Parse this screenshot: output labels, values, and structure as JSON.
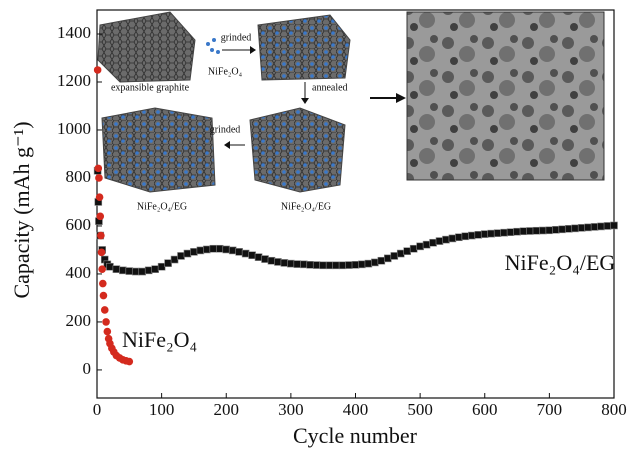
{
  "chart_data": {
    "type": "scatter",
    "x_label": "Cycle number",
    "y_label": "Capacity (mAh g⁻¹)",
    "xlim": [
      0,
      800
    ],
    "xticks": [
      0,
      100,
      200,
      300,
      400,
      500,
      600,
      700,
      800
    ],
    "ylim": [
      -117,
      1500
    ],
    "yticks": [
      0,
      200,
      400,
      600,
      800,
      1000,
      1200,
      1400
    ],
    "annotations": [
      "NiFe₂O₄/EG",
      "NiFe₂O₄"
    ],
    "inset_labels": [
      "expansible graphite",
      "grinded",
      "NiFe₂O₄",
      "annealed",
      "grinded",
      "NiFe₂O₄/EG",
      "NiFe₂O₄/EG"
    ],
    "series": [
      {
        "name": "NiFe₂O₄/EG",
        "color": "#111111",
        "x": [
          1,
          2,
          3,
          5,
          8,
          12,
          16,
          20,
          30,
          40,
          50,
          60,
          70,
          80,
          90,
          100,
          110,
          120,
          130,
          140,
          150,
          160,
          170,
          180,
          190,
          200,
          210,
          220,
          230,
          240,
          250,
          260,
          270,
          280,
          290,
          300,
          310,
          320,
          330,
          340,
          350,
          360,
          370,
          380,
          390,
          400,
          410,
          420,
          430,
          440,
          450,
          460,
          470,
          480,
          490,
          500,
          510,
          520,
          530,
          540,
          550,
          560,
          570,
          580,
          590,
          600,
          610,
          620,
          630,
          640,
          650,
          660,
          670,
          680,
          690,
          700,
          710,
          720,
          730,
          740,
          750,
          760,
          770,
          780,
          790,
          800
        ],
        "values": [
          830,
          700,
          620,
          560,
          500,
          460,
          440,
          430,
          420,
          415,
          412,
          410,
          410,
          415,
          420,
          430,
          445,
          460,
          475,
          485,
          492,
          498,
          502,
          505,
          505,
          502,
          498,
          492,
          485,
          478,
          470,
          462,
          455,
          450,
          446,
          443,
          441,
          440,
          438,
          437,
          436,
          436,
          436,
          436,
          437,
          438,
          440,
          443,
          448,
          455,
          465,
          475,
          485,
          495,
          505,
          515,
          522,
          530,
          537,
          543,
          548,
          553,
          557,
          560,
          563,
          566,
          568,
          570,
          572,
          574,
          576,
          578,
          579,
          580,
          581,
          582,
          584,
          586,
          588,
          590,
          592,
          594,
          596,
          598,
          600,
          602
        ]
      },
      {
        "name": "NiFe₂O₄",
        "color": "#d42a1e",
        "x": [
          1,
          2,
          3,
          4,
          5,
          6,
          7,
          8,
          9,
          10,
          12,
          14,
          16,
          18,
          20,
          23,
          26,
          30,
          35,
          40,
          45,
          50
        ],
        "values": [
          1250,
          840,
          800,
          720,
          640,
          560,
          490,
          420,
          360,
          310,
          250,
          200,
          160,
          130,
          110,
          90,
          75,
          60,
          50,
          42,
          38,
          35
        ]
      }
    ]
  }
}
